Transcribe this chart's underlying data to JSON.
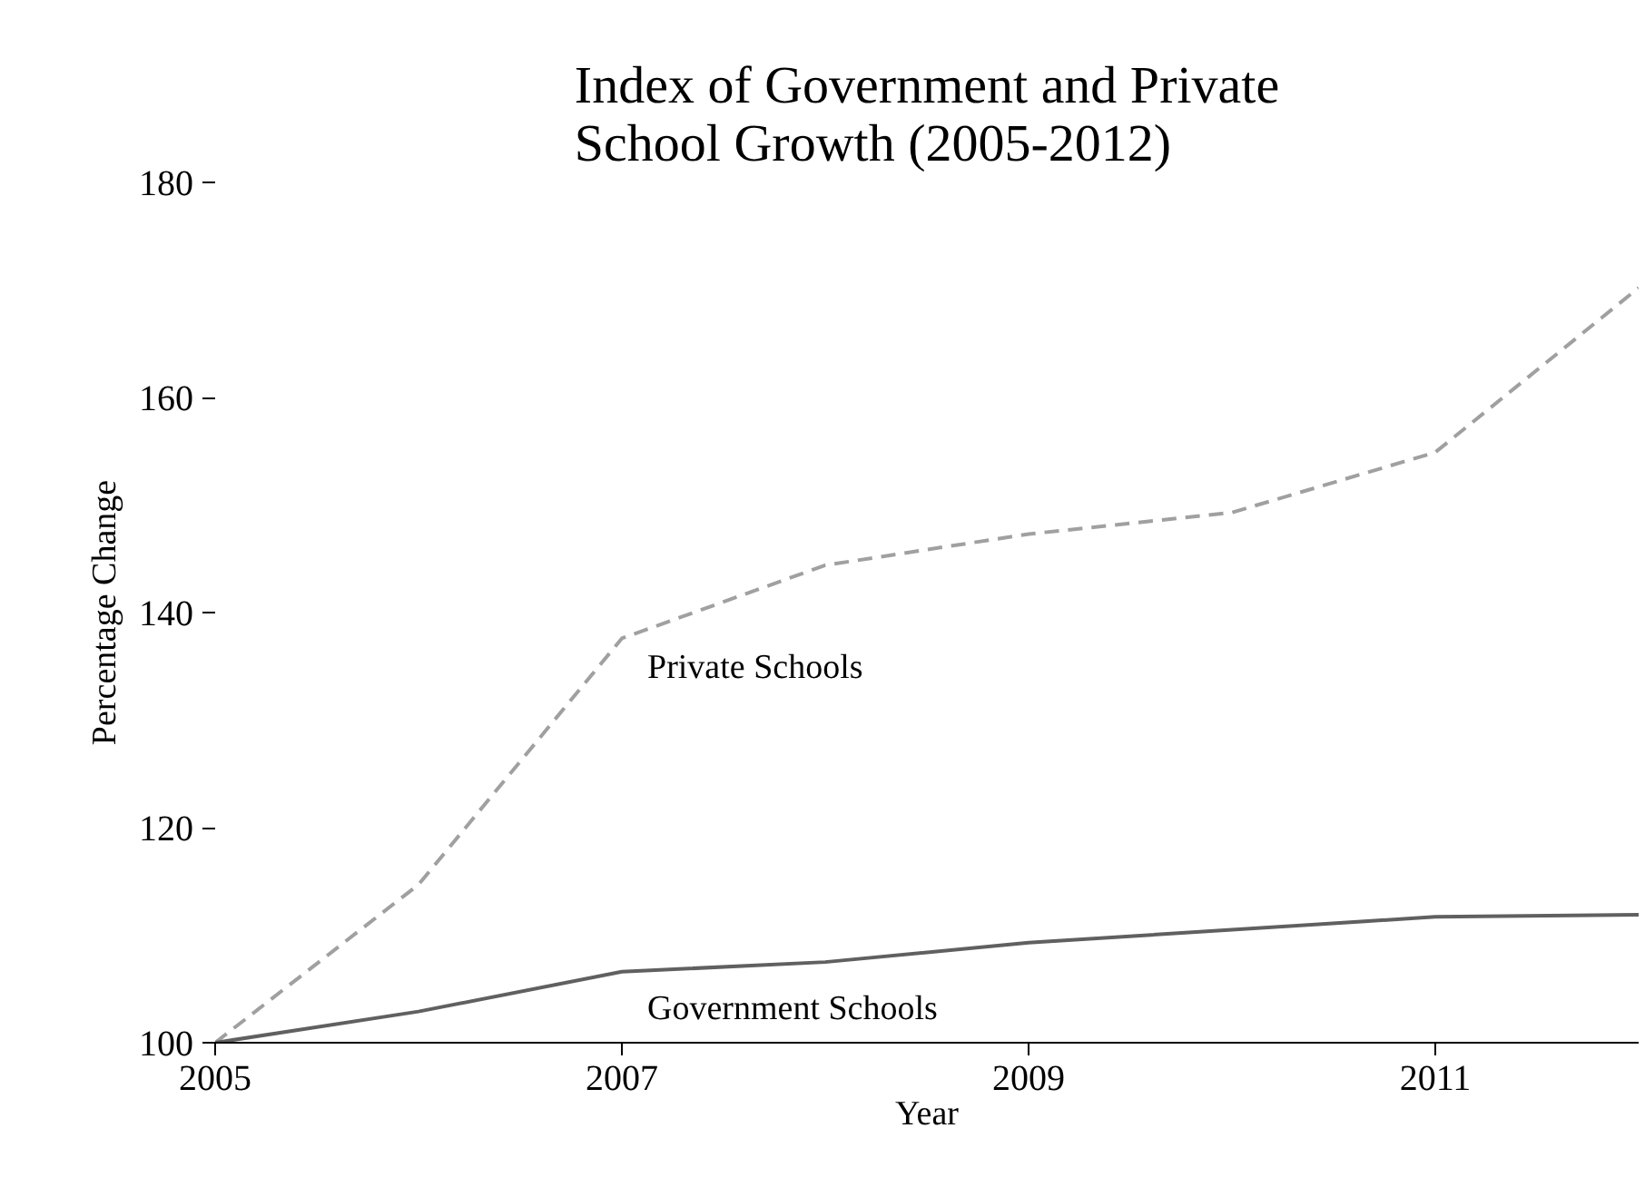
{
  "chart_data": {
    "type": "line",
    "title": "Index of Government and Private School Growth (2005-2012)",
    "xlabel": "Year",
    "ylabel": "Percentage Change",
    "x": [
      2005,
      2006,
      2007,
      2008,
      2009,
      2010,
      2011,
      2012
    ],
    "series": [
      {
        "name": "Private Schools",
        "color": "#a0a0a0",
        "line_style": "dashed",
        "values": [
          100,
          114.7,
          137.6,
          144.4,
          147.3,
          149.3,
          154.9,
          170.2
        ]
      },
      {
        "name": "Government Schools",
        "color": "#606060",
        "line_style": "solid",
        "values": [
          100,
          102.9,
          106.6,
          107.5,
          109.3,
          110.5,
          111.7,
          111.9
        ]
      }
    ],
    "xlim": [
      2005,
      2012
    ],
    "ylim": [
      100,
      180
    ],
    "xticks": [
      2005,
      2007,
      2009,
      2011
    ],
    "yticks": [
      100,
      120,
      140,
      160,
      180
    ],
    "grid": false,
    "legend": false,
    "marker": "none"
  }
}
